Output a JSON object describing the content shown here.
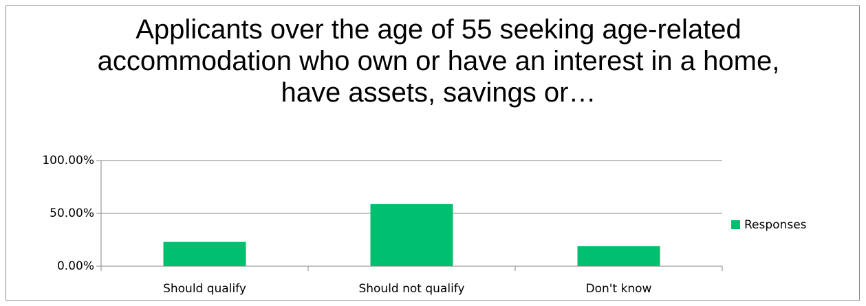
{
  "chart_data": {
    "type": "bar",
    "title": "Applicants over the age of 55 seeking age-related accommodation who own or have an interest in a home, have assets, savings or…",
    "categories": [
      "Should qualify",
      "Should not qualify",
      "Don't know"
    ],
    "series": [
      {
        "name": "Responses",
        "color": "#00bf6f",
        "values": [
          23,
          59,
          19
        ]
      }
    ],
    "ylim": [
      0,
      100
    ],
    "yticks": [
      {
        "value": 0,
        "label": "0.00%"
      },
      {
        "value": 50,
        "label": "50.00%"
      },
      {
        "value": 100,
        "label": "100.00%"
      }
    ],
    "grid": true,
    "legend": "right"
  }
}
